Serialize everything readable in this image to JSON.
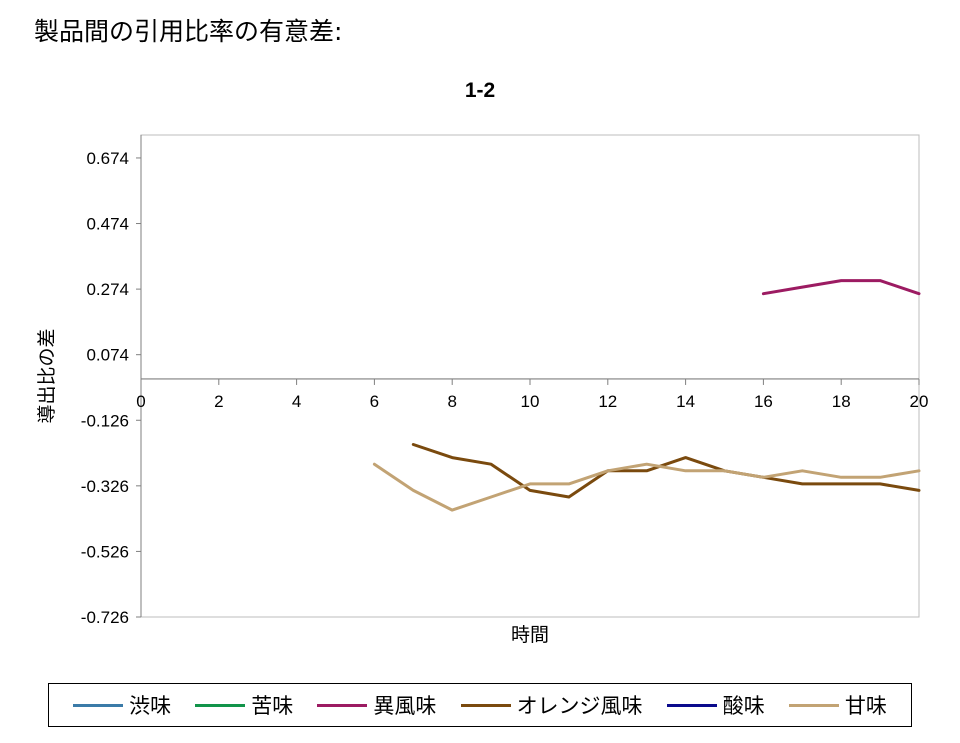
{
  "heading": "製品間の引用比率の有意差:",
  "chart_data": {
    "type": "line",
    "title": "1-2",
    "xlabel": "時間",
    "ylabel": "導出比の差",
    "xlim": [
      0,
      20
    ],
    "ylim": [
      -0.726,
      0.744
    ],
    "x_ticks": [
      0,
      2,
      4,
      6,
      8,
      10,
      12,
      14,
      16,
      18,
      20
    ],
    "y_ticks": [
      0.674,
      0.474,
      0.274,
      0.074,
      -0.126,
      -0.326,
      -0.526,
      -0.726
    ],
    "x_tick_labels": [
      "0",
      "2",
      "4",
      "6",
      "8",
      "10",
      "12",
      "14",
      "16",
      "18",
      "20"
    ],
    "y_tick_labels": [
      "0.674",
      "0.474",
      "0.274",
      "0.074",
      "-0.126",
      "-0.326",
      "-0.526",
      "-0.726"
    ],
    "grid": false,
    "legend_position": "bottom",
    "series": [
      {
        "name": "渋味",
        "color": "#3b7ba8",
        "x": [],
        "y": []
      },
      {
        "name": "苦味",
        "color": "#12944a",
        "x": [],
        "y": []
      },
      {
        "name": "異風味",
        "color": "#9c1b62",
        "x": [
          16,
          17,
          18,
          19,
          20
        ],
        "y": [
          0.26,
          0.28,
          0.3,
          0.3,
          0.26
        ]
      },
      {
        "name": "オレンジ風味",
        "color": "#7a4a0e",
        "x": [
          7,
          8,
          9,
          10,
          11,
          12,
          13,
          14,
          15,
          16,
          17,
          18,
          19,
          20
        ],
        "y": [
          -0.2,
          -0.24,
          -0.26,
          -0.34,
          -0.36,
          -0.28,
          -0.28,
          -0.24,
          -0.28,
          -0.3,
          -0.32,
          -0.32,
          -0.32,
          -0.34
        ]
      },
      {
        "name": "酸味",
        "color": "#0a0a8c",
        "x": [],
        "y": []
      },
      {
        "name": "甘味",
        "color": "#c2a374",
        "x": [
          6,
          7,
          8,
          9,
          10,
          11,
          12,
          13,
          14,
          15,
          16,
          17,
          18,
          19,
          20
        ],
        "y": [
          -0.26,
          -0.34,
          -0.4,
          -0.36,
          -0.32,
          -0.32,
          -0.28,
          -0.26,
          -0.28,
          -0.28,
          -0.3,
          -0.28,
          -0.3,
          -0.3,
          -0.28
        ]
      }
    ]
  }
}
